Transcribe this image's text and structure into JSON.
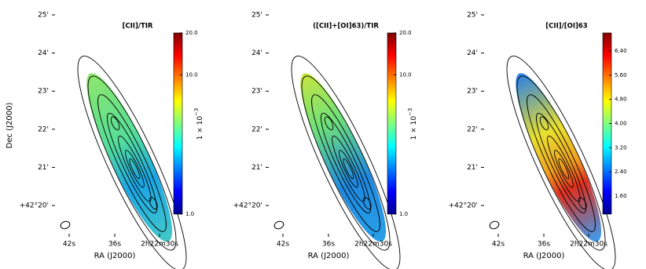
{
  "panels": [
    {
      "title": "[CII]/TIR",
      "ylabel": "Dec (J2000)",
      "xlabel": "RA (J2000)",
      "yticks": [
        "25'",
        "24'",
        "23'",
        "22'",
        "21'",
        "+42°20'"
      ],
      "xticks": [
        "42s",
        "36s",
        "2h22m30s"
      ],
      "colorbar": {
        "log": true,
        "range": [
          1,
          20
        ],
        "ticks": [
          {
            "value": 1,
            "label": "1.0"
          },
          {
            "value": 10,
            "label": "10.0"
          },
          {
            "value": 20,
            "label": "20.0"
          }
        ],
        "label": "1 × 10",
        "label_exponent": "−3"
      }
    },
    {
      "title": "([CII]+[OI]63)/TIR",
      "xlabel": "RA (J2000)",
      "yticks": [
        "25'",
        "24'",
        "23'",
        "22'",
        "21'",
        "+42°20'"
      ],
      "xticks": [
        "42s",
        "36s",
        "2h22m30s"
      ],
      "colorbar": {
        "log": true,
        "range": [
          1,
          20
        ],
        "ticks": [
          {
            "value": 1,
            "label": "1.0"
          },
          {
            "value": 10,
            "label": "10.0"
          },
          {
            "value": 20,
            "label": "20.0"
          }
        ],
        "label": "1 × 10",
        "label_exponent": "−3"
      }
    },
    {
      "title": "[CII]/[OI]63",
      "xlabel": "RA (J2000)",
      "yticks": [
        "25'",
        "24'",
        "23'",
        "22'",
        "21'",
        "+42°20'"
      ],
      "xticks": [
        "42s",
        "36s",
        "2h22m30s"
      ],
      "colorbar": {
        "log": false,
        "range": [
          1.0,
          7.0
        ],
        "ticks": [
          {
            "value": 1.6,
            "label": "1.60"
          },
          {
            "value": 2.4,
            "label": "2.40"
          },
          {
            "value": 3.2,
            "label": "3.20"
          },
          {
            "value": 4.0,
            "label": "4.00"
          },
          {
            "value": 4.8,
            "label": "4.80"
          },
          {
            "value": 5.6,
            "label": "5.60"
          },
          {
            "value": 6.4,
            "label": "6.40"
          }
        ]
      }
    }
  ]
}
